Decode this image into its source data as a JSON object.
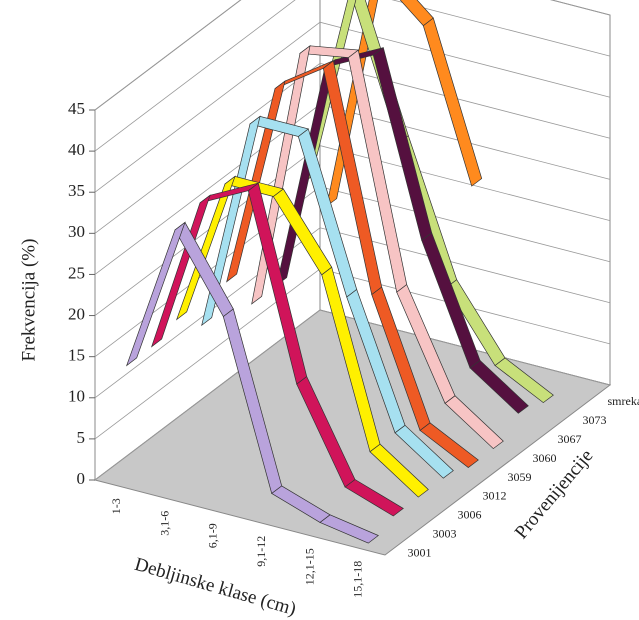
{
  "chart_data": {
    "type": "line3d",
    "y_label": "Frekvencija (%)",
    "x_label": "Debljinske klase (cm)",
    "z_label": "Provenijencije",
    "categories": [
      "1-3",
      "3,1-6",
      "6,1-9",
      "9,1-12",
      "12,1-15",
      "15,1-18"
    ],
    "ylim": [
      0,
      45
    ],
    "yticks": [
      0,
      5,
      10,
      15,
      20,
      25,
      30,
      35,
      40,
      45
    ],
    "grid": true,
    "series": [
      {
        "name": "3001",
        "color": "#b9a3dc",
        "values": [
          14,
          32,
          23,
          3,
          1,
          0
        ]
      },
      {
        "name": "3003",
        "color": "#d0145a",
        "values": [
          14,
          33,
          36,
          14,
          3,
          1
        ]
      },
      {
        "name": "3006",
        "color": "#fff000",
        "values": [
          15,
          33,
          33,
          25,
          5,
          1
        ]
      },
      {
        "name": "3012",
        "color": "#a6e0f0",
        "values": [
          12,
          38,
          38,
          20,
          5,
          1
        ]
      },
      {
        "name": "3059",
        "color": "#ee5a24",
        "values": [
          15,
          40,
          44,
          18,
          3,
          0
        ]
      },
      {
        "name": "3060",
        "color": "#f7c4c4",
        "values": [
          10,
          42,
          43,
          16,
          4,
          0
        ]
      },
      {
        "name": "3067",
        "color": "#55103f",
        "values": [
          10,
          38,
          41,
          20,
          6,
          2
        ]
      },
      {
        "name": "3073",
        "color": "#c8e07a",
        "values": [
          20,
          45,
          28,
          12,
          4,
          1
        ]
      },
      {
        "name": "smreka",
        "color": "#ff8a1e",
        "values": [
          15,
          45,
          40,
          22,
          null,
          null
        ]
      }
    ]
  }
}
